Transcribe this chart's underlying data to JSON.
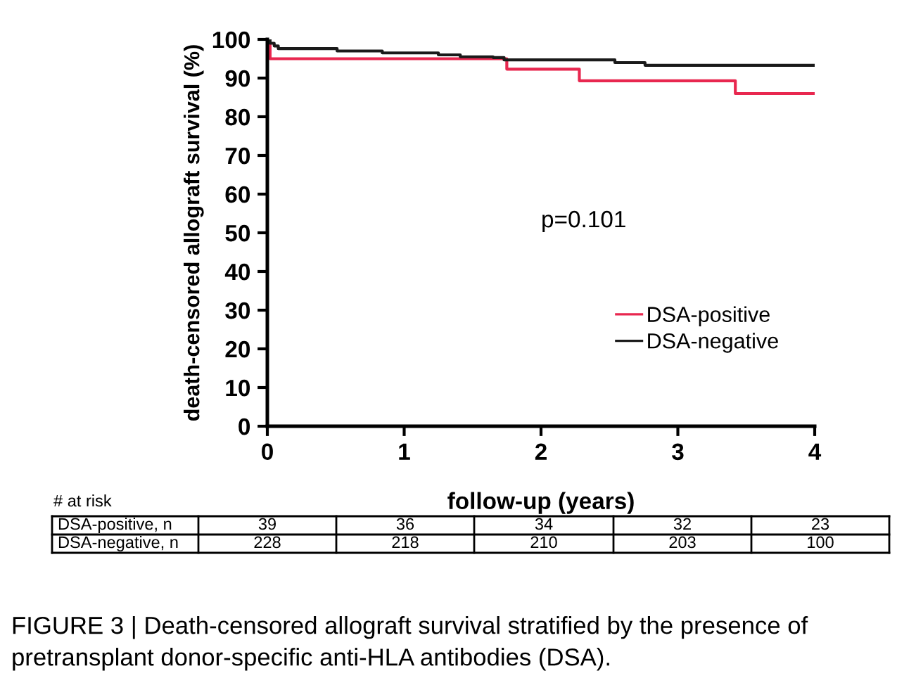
{
  "chart_data": {
    "type": "step",
    "xlabel": "follow-up (years)",
    "ylabel": "death-censored allograft survival (%)",
    "xlim": [
      0,
      4
    ],
    "xticks": [
      0,
      1,
      2,
      3,
      4
    ],
    "ylim": [
      0,
      100
    ],
    "yticks": [
      0,
      10,
      20,
      30,
      40,
      50,
      60,
      70,
      80,
      90,
      100
    ],
    "grid": false,
    "legend": "right",
    "series": [
      {
        "name": "DSA-positive",
        "color": "#e8274f",
        "x": [
          0,
          0.02,
          1.75,
          2.28,
          3.42,
          4
        ],
        "values": [
          100,
          95,
          92.3,
          89.3,
          86,
          86
        ]
      },
      {
        "name": "DSA-negative",
        "color": "#1a1a1a",
        "x": [
          0,
          0.02,
          0.05,
          0.08,
          0.51,
          0.84,
          1.25,
          1.41,
          1.65,
          1.73,
          2.54,
          2.76,
          4
        ],
        "values": [
          100,
          99,
          98.3,
          97.6,
          97,
          96.5,
          96,
          95.5,
          95.3,
          94.7,
          94,
          93.3,
          93.3
        ]
      }
    ],
    "annotations": [
      "p=0.101",
      "# at risk",
      "DSA-positive, n",
      "39",
      "36",
      "34",
      "32",
      "23",
      "DSA-negative, n",
      "228",
      "218",
      "210",
      "203",
      "100",
      "FIGURE 3 | Death-censored allograft survival stratified by the presence of pretransplant donor-specific anti-HLA antibodies (DSA)."
    ]
  }
}
